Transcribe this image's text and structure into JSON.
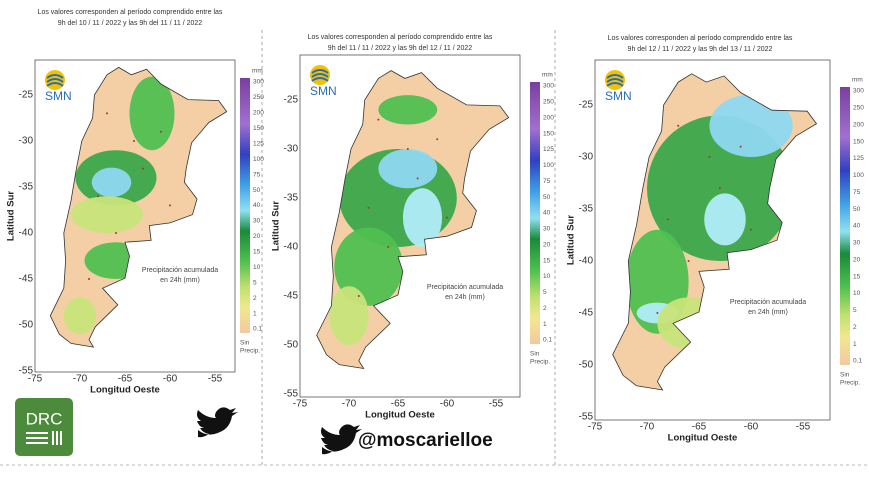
{
  "panels": [
    {
      "header": [
        "Los valores corresponden al período comprendido entre las",
        "9h del 10 / 11 / 2022  y las 9h del 11 / 11 / 2022"
      ],
      "logo": "SMN",
      "y_axis_title": "Latitud Sur",
      "x_axis_title": "Longitud Oeste",
      "lat_ticks": [
        "-25",
        "-30",
        "-35",
        "-40",
        "-45",
        "-50",
        "-55"
      ],
      "lon_ticks": [
        "-75",
        "-70",
        "-65",
        "-60",
        "-55"
      ],
      "annotation": [
        "Precipitación acumulada",
        "en 24h (mm)"
      ],
      "legend_unit": "mm",
      "legend": [
        "300",
        "250",
        "200",
        "150",
        "125",
        "100",
        "75",
        "50",
        "40",
        "30",
        "20",
        "15",
        "10",
        "5",
        "2",
        "1",
        "0.1",
        "Sin",
        "Precip."
      ]
    },
    {
      "header": [
        "Los valores corresponden al período comprendido entre las",
        "9h del 11 / 11 / 2022  y las 9h del 12 / 11 / 2022"
      ],
      "logo": "SMN",
      "y_axis_title": "Latitud Sur",
      "x_axis_title": "Longitud Oeste",
      "lat_ticks": [
        "-25",
        "-30",
        "-35",
        "-40",
        "-45",
        "-50",
        "-55"
      ],
      "lon_ticks": [
        "-75",
        "-70",
        "-65",
        "-60",
        "-55"
      ],
      "annotation": [
        "Precipitación acumulada",
        "en 24h (mm)"
      ],
      "legend_unit": "mm",
      "legend": [
        "300",
        "250",
        "200",
        "150",
        "125",
        "100",
        "75",
        "50",
        "40",
        "30",
        "20",
        "15",
        "10",
        "5",
        "2",
        "1",
        "0.1",
        "Sin",
        "Precip."
      ]
    },
    {
      "header": [
        "Los valores corresponden al período comprendido entre las",
        "9h del 12 / 11 / 2022  y las 9h del 13 / 11 / 2022"
      ],
      "logo": "SMN",
      "y_axis_title": "Latitud Sur",
      "x_axis_title": "Longitud Oeste",
      "lat_ticks": [
        "-25",
        "-30",
        "-35",
        "-40",
        "-45",
        "-50",
        "-55"
      ],
      "lon_ticks": [
        "-75",
        "-70",
        "-65",
        "-60",
        "-55"
      ],
      "annotation": [
        "Precipitación acumulada",
        "en 24h (mm)"
      ],
      "legend_unit": "mm",
      "legend": [
        "300",
        "250",
        "200",
        "150",
        "125",
        "100",
        "75",
        "50",
        "40",
        "30",
        "20",
        "15",
        "10",
        "5",
        "2",
        "1",
        "0.1",
        "Sin",
        "Precip."
      ]
    }
  ],
  "badge": "DRC",
  "handle": "@moscarielloe"
}
